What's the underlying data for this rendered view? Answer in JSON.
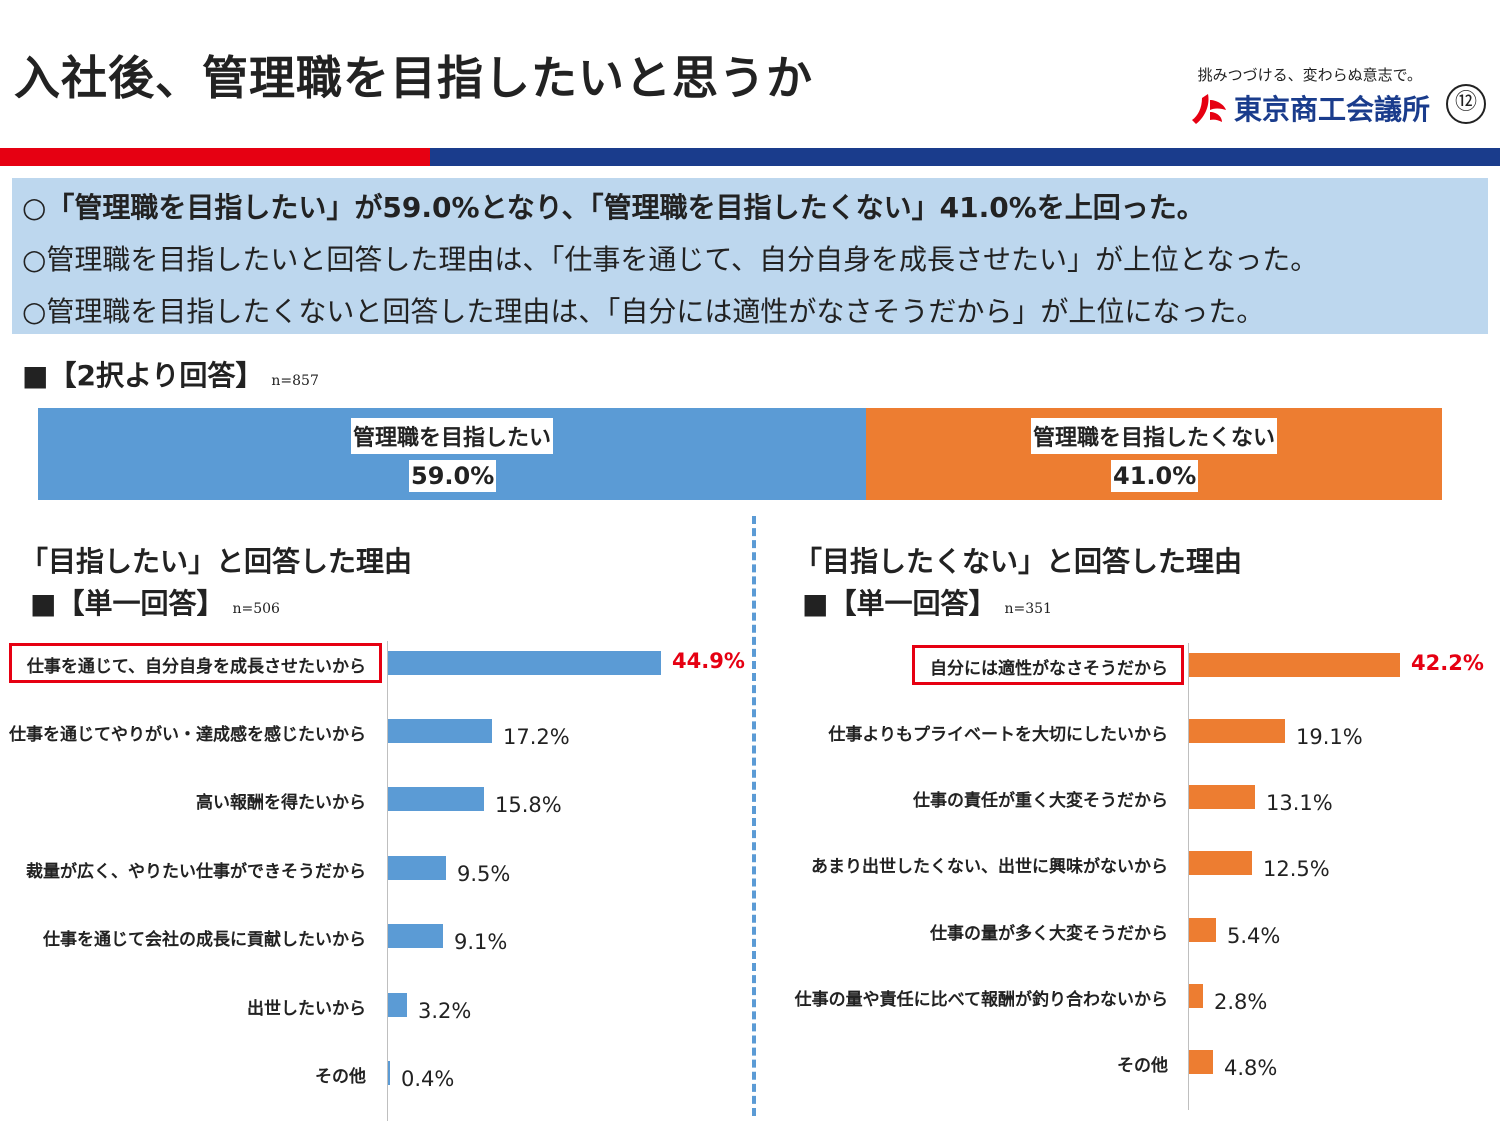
{
  "header": {
    "title": "入社後、管理職を目指したいと思うか",
    "tagline": "挑みつづける、変わらぬ意志で。",
    "org_name": "東京商工会議所",
    "page_number": "⑫",
    "accent_red": "#e60012",
    "accent_blue": "#1a3c8c"
  },
  "summary": [
    "○「管理職を目指したい」が59.0%となり、「管理職を目指したくない」41.0%を上回った。",
    "○管理職を目指したいと回答した理由は、「仕事を通じて、自分自身を成長させたい」が上位となった。",
    "○管理職を目指したくないと回答した理由は、「自分には適性がなさそうだから」が上位になった。"
  ],
  "overall": {
    "heading": "■【2択より回答】",
    "n": "n=857"
  },
  "left_section": {
    "title": "「目指したい」と回答した理由",
    "heading": "■【単一回答】",
    "n": "n=506"
  },
  "right_section": {
    "title": "「目指したくない」と回答した理由",
    "heading": "■【単一回答】",
    "n": "n=351"
  },
  "chart_data": [
    {
      "type": "bar",
      "orientation": "stacked-horizontal",
      "categories": [
        "管理職を目指したい",
        "管理職を目指したくない"
      ],
      "values": [
        59.0,
        41.0
      ],
      "labels": [
        "59.0%",
        "41.0%"
      ],
      "colors": [
        "#5b9bd5",
        "#ed7d31"
      ]
    },
    {
      "type": "bar",
      "orientation": "horizontal",
      "categories": [
        "仕事を通じて、自分自身を成長させたいから",
        "仕事を通じてやりがい・達成感を感じたいから",
        "高い報酬を得たいから",
        "裁量が広く、やりたい仕事ができそうだから",
        "仕事を通じて会社の成長に貢献したいから",
        "出世したいから",
        "その他"
      ],
      "values": [
        44.9,
        17.2,
        15.8,
        9.5,
        9.1,
        3.2,
        0.4
      ],
      "labels": [
        "44.9%",
        "17.2%",
        "15.8%",
        "9.5%",
        "9.1%",
        "3.2%",
        "0.4%"
      ],
      "highlight_index": 0,
      "color": "#5b9bd5",
      "highlight_color": "#e60012"
    },
    {
      "type": "bar",
      "orientation": "horizontal",
      "categories": [
        "自分には適性がなさそうだから",
        "仕事よりもプライベートを大切にしたいから",
        "仕事の責任が重く大変そうだから",
        "あまり出世したくない、出世に興味がないから",
        "仕事の量が多く大変そうだから",
        "仕事の量や責任に比べて報酬が釣り合わないから",
        "その他"
      ],
      "values": [
        42.2,
        19.1,
        13.1,
        12.5,
        5.4,
        2.8,
        4.8
      ],
      "labels": [
        "42.2%",
        "19.1%",
        "13.1%",
        "12.5%",
        "5.4%",
        "2.8%",
        "4.8%"
      ],
      "highlight_index": 0,
      "color": "#ed7d31",
      "highlight_color": "#e60012"
    }
  ]
}
